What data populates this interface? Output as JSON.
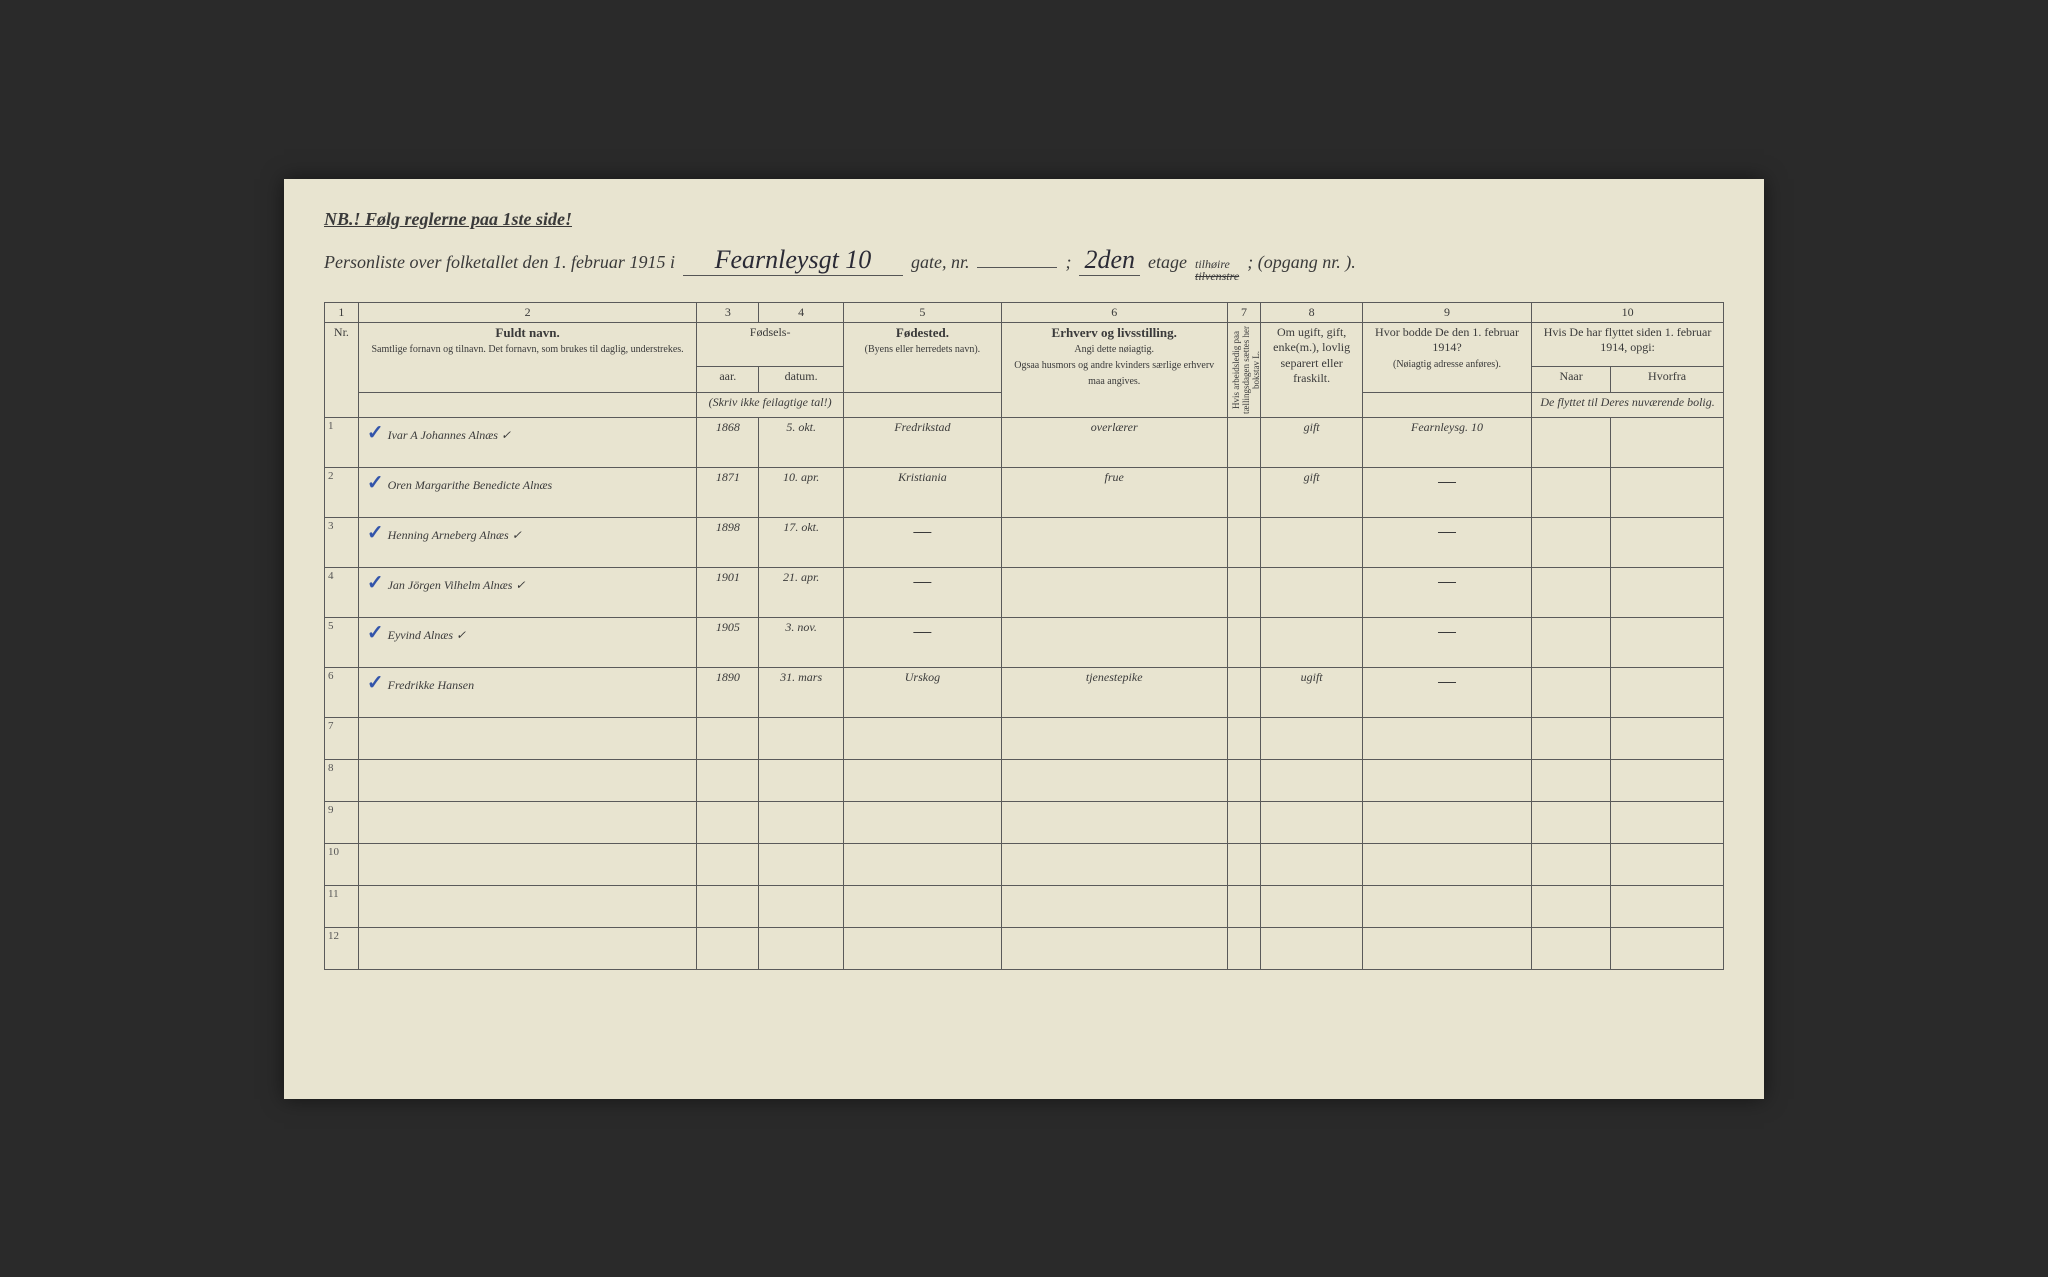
{
  "nb_text": "NB.! Følg reglerne paa 1ste side!",
  "header": {
    "prefix": "Personliste over folketallet den 1. februar 1915 i",
    "street": "Fearnleysgt 10",
    "gate_label": "gate, nr.",
    "gate_value": "",
    "etage_value": "2den",
    "etage_label": "etage",
    "side_top": "tilhøire",
    "side_bottom": "tilvenstre",
    "opgang": "; (opgang nr.        )."
  },
  "colnums": [
    "1",
    "2",
    "3",
    "4",
    "5",
    "6",
    "7",
    "8",
    "9",
    "10"
  ],
  "headers": {
    "nr": "Nr.",
    "name_main": "Fuldt navn.",
    "name_sub": "Samtlige fornavn og tilnavn. Det fornavn, som brukes til daglig, understrekes.",
    "birth_main": "Fødsels-",
    "birth_year": "aar.",
    "birth_date": "datum.",
    "birth_sub": "(Skriv ikke feilagtige tal!)",
    "place_main": "Fødested.",
    "place_sub": "(Byens eller herredets navn).",
    "occ_main": "Erhverv og livsstilling.",
    "occ_sub1": "Angi dette nøiagtig.",
    "occ_sub2": "Ogsaa husmors og andre kvinders særlige erhverv maa angives.",
    "col7": "Hvis arbeidsledig paa tællingsdagen sættes her bokstav L.",
    "col8": "Om ugift, gift, enke(m.), lovlig separert eller fraskilt.",
    "col9_main": "Hvor bodde De den 1. februar 1914?",
    "col9_sub": "(Nøiagtig adresse anføres).",
    "col10_main": "Hvis De har flyttet siden 1. februar 1914, opgi:",
    "col10_a": "Naar",
    "col10_b": "Hvorfra",
    "col10_sub": "De flyttet til Deres nuværende bolig."
  },
  "rows": [
    {
      "nr": "1",
      "check": "✓",
      "name": "Ivar A Johannes Alnæs ✓",
      "year": "1868",
      "date": "5. okt.",
      "place": "Fredrikstad",
      "occ": "overlærer",
      "c7": "",
      "c8": "gift",
      "c9": "Fearnleysg. 10",
      "c10a": "",
      "c10b": ""
    },
    {
      "nr": "2",
      "check": "✓",
      "name": "Oren Margarithe Benedicte Alnæs",
      "year": "1871",
      "date": "10. apr.",
      "place": "Kristiania",
      "occ": "frue",
      "c7": "",
      "c8": "gift",
      "c9": "—",
      "c10a": "",
      "c10b": ""
    },
    {
      "nr": "3",
      "check": "✓",
      "name": "Henning Arneberg Alnæs ✓",
      "year": "1898",
      "date": "17. okt.",
      "place": "—",
      "occ": "",
      "c7": "",
      "c8": "",
      "c9": "—",
      "c10a": "",
      "c10b": ""
    },
    {
      "nr": "4",
      "check": "✓",
      "name": "Jan Jörgen Vilhelm Alnæs ✓",
      "year": "1901",
      "date": "21. apr.",
      "place": "—",
      "occ": "",
      "c7": "",
      "c8": "",
      "c9": "—",
      "c10a": "",
      "c10b": ""
    },
    {
      "nr": "5",
      "check": "✓",
      "name": "Eyvind Alnæs ✓",
      "year": "1905",
      "date": "3. nov.",
      "place": "—",
      "occ": "",
      "c7": "",
      "c8": "",
      "c9": "—",
      "c10a": "",
      "c10b": ""
    },
    {
      "nr": "6",
      "check": "✓",
      "name": "Fredrikke Hansen",
      "year": "1890",
      "date": "31. mars",
      "place": "Urskog",
      "occ": "tjenestepike",
      "c7": "",
      "c8": "ugift",
      "c9": "—",
      "c10a": "",
      "c10b": ""
    }
  ],
  "empty_rows": [
    "7",
    "8",
    "9",
    "10",
    "11",
    "12"
  ],
  "colors": {
    "paper": "#e8e4d0",
    "ink_print": "#3a3a3a",
    "ink_hand": "#2a2a35",
    "border": "#5a5a5a",
    "check": "#3355aa"
  }
}
